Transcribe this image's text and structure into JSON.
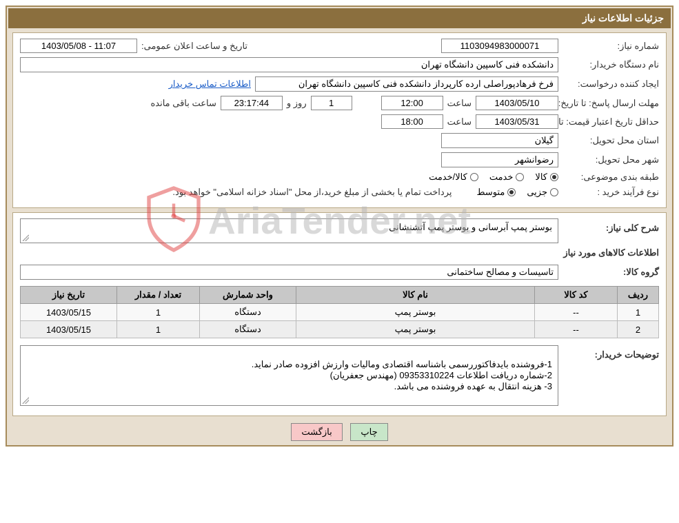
{
  "header": {
    "title": "جزئیات اطلاعات نیاز"
  },
  "labels": {
    "req_number": "شماره نیاز:",
    "announce_datetime": "تاریخ و ساعت اعلان عمومی:",
    "buyer_org": "نام دستگاه خریدار:",
    "requester": "ایجاد کننده درخواست:",
    "contact_link": "اطلاعات تماس خریدار",
    "response_deadline": "مهلت ارسال پاسخ: تا تاریخ:",
    "time_word": "ساعت",
    "day_and": "روز و",
    "time_remaining": "ساعت باقی مانده",
    "price_validity": "حداقل تاریخ اعتبار قیمت: تا تاریخ:",
    "delivery_province": "استان محل تحویل:",
    "delivery_city": "شهر محل تحویل:",
    "classification": "طبقه بندی موضوعی:",
    "goods": "کالا",
    "service": "خدمت",
    "goods_service": "کالا/خدمت",
    "purchase_type": "نوع فرآیند خرید :",
    "partial": "جزیی",
    "medium": "متوسط",
    "payment_note": "پرداخت تمام یا بخشی از مبلغ خرید،از محل \"اسناد خزانه اسلامی\" خواهد بود.",
    "general_desc": "شرح کلی نیاز:",
    "goods_info_title": "اطلاعات کالاهای مورد نیاز",
    "goods_group": "گروه کالا:",
    "buyer_notes": "توضیحات خریدار:",
    "print_btn": "چاپ",
    "back_btn": "بازگشت"
  },
  "values": {
    "req_number": "1103094983000071",
    "announce_datetime": "11:07 - 1403/05/08",
    "buyer_org": "دانشکده فنی کاسپین دانشگاه تهران",
    "requester": "فرخ فرهادپوراصلی ارده کارپرداز دانشکده فنی کاسپین دانشگاه تهران",
    "response_date": "1403/05/10",
    "response_time": "12:00",
    "days_left": "1",
    "countdown": "23:17:44",
    "validity_date": "1403/05/31",
    "validity_time": "18:00",
    "province": "گیلان",
    "city": "رضوانشهر",
    "classification_checked": "goods",
    "purchase_checked": "medium",
    "general_desc": "بوستر پمپ آبرسانی و بوستر پمپ آتشنشانی",
    "goods_group": "تاسیسات و مصالح ساختمانی",
    "buyer_notes": "1-فروشنده بایدفاکتوررسمی باشناسه اقتصادی ومالیات وارزش افزوده صادر نماید.\n2-شماره دریافت اطلاعات 09353310224 (مهندس جعفریان)\n3- هزینه انتقال به عهده فروشنده می باشد."
  },
  "table": {
    "columns": [
      "ردیف",
      "کد کالا",
      "نام کالا",
      "واحد شمارش",
      "تعداد / مقدار",
      "تاریخ نیاز"
    ],
    "rows": [
      [
        "1",
        "--",
        "بوستر پمپ",
        "دستگاه",
        "1",
        "1403/05/15"
      ],
      [
        "2",
        "--",
        "بوستر پمپ",
        "دستگاه",
        "1",
        "1403/05/15"
      ]
    ]
  },
  "watermark": "AriaTender.net",
  "colors": {
    "header_bg": "#8b6f3e",
    "outer_border": "#a68b5b",
    "container_bg": "#e8dfd0",
    "table_header_bg": "#c8c8c8"
  }
}
